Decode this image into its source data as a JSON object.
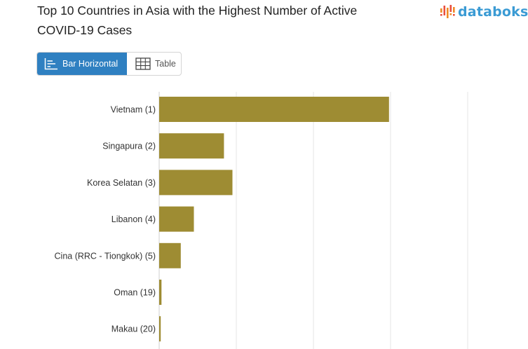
{
  "title_line1": "Top 10 Countries in Asia with the Highest Number of Active",
  "title_line2": "COVID-19 Cases",
  "logo_text": "databoks",
  "toggle": {
    "bar_label": "Bar Horizontal",
    "table_label": "Table"
  },
  "colors": {
    "bar": "#9e8c33",
    "accent": "#2f80c1",
    "logo": "#3b9bd4"
  },
  "chart_data": {
    "type": "bar",
    "orientation": "horizontal",
    "categories": [
      "Vietnam (1)",
      "Singapura (2)",
      "Korea Selatan (3)",
      "Libanon (4)",
      "Cina (RRC - Tiongkok) (5)",
      "Oman (19)",
      "Makau (20)"
    ],
    "values": [
      298,
      84,
      95,
      45,
      28,
      3,
      2
    ],
    "xlim": [
      0,
      400
    ],
    "grid": true
  }
}
